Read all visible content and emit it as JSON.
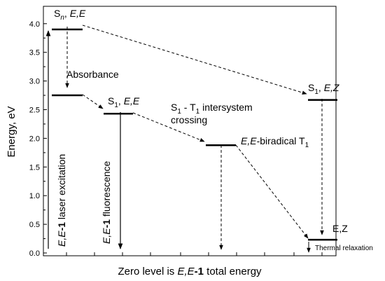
{
  "axes": {
    "ylabel": "Energy, eV",
    "xlabel_parts": [
      "Zero level is ",
      "E,E",
      "-1",
      " total energy"
    ],
    "y_ticks": [
      "0.0",
      "0.5",
      "1.0",
      "1.5",
      "2.0",
      "2.5",
      "3.0",
      "3.5",
      "4.0"
    ],
    "y_range": [
      0.0,
      4.2
    ]
  },
  "levels": [
    {
      "id": "sn-ee",
      "energy": 3.9
    },
    {
      "id": "absorbance-level",
      "energy": 2.75
    },
    {
      "id": "s1-ee",
      "energy": 2.43
    },
    {
      "id": "t1-biradical",
      "energy": 1.88
    },
    {
      "id": "s1-ez",
      "energy": 2.67
    },
    {
      "id": "ez-ground",
      "energy": 0.23
    }
  ],
  "labels": {
    "sn": {
      "main": "S",
      "sub": "n",
      "sep": ", ",
      "ital": "E,E"
    },
    "absorbance": "Absorbance",
    "s1ee": {
      "main": "S",
      "sub": "1",
      "sep": ", ",
      "ital": "E,E"
    },
    "isc_line1": {
      "s": "S",
      "sub1": "1",
      "mid": " - T",
      "sub2": "1",
      "rest": " intersystem"
    },
    "isc_line2": "crossing",
    "biradical": {
      "ital": "E,E",
      "rest": "-biradical T",
      "sub": "1"
    },
    "s1ez": {
      "main": "S",
      "sub": "1",
      "sep": ", ",
      "ital": "E,Z"
    },
    "ez": "E,Z",
    "thermal": "Thermal relaxation",
    "laser": {
      "ital": "E,E",
      "bold": "-1",
      "rest": " laser excitation"
    },
    "fluorescence": {
      "ital": "E,E",
      "bold": "-1",
      "rest": " fluorescence"
    }
  }
}
